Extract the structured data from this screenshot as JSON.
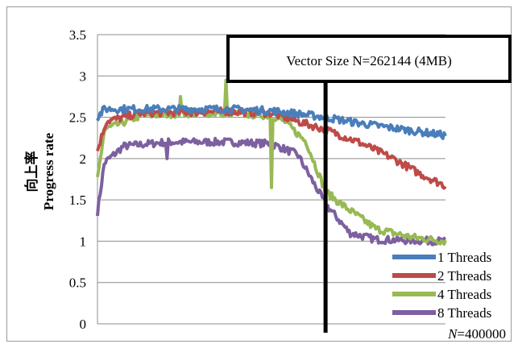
{
  "chart_data": {
    "type": "line",
    "ylabel": "向上率",
    "ylabel_sub": "Progress rate",
    "ylim": [
      0,
      3.5
    ],
    "yticks": [
      "0",
      "0.5",
      "1",
      "1.5",
      "2",
      "2.5",
      "3",
      "3.5"
    ],
    "xlim": [
      0,
      400000
    ],
    "x_note_prefix": "N",
    "x_note_value": "=400000",
    "annotation": {
      "text": "Vector Size N=262144 (4MB)",
      "x": 262144
    },
    "grid": true,
    "legend_position": "bottom-right",
    "series": [
      {
        "name": "1 Threads",
        "color": "#4a7ebb",
        "points": [
          [
            0,
            2.5
          ],
          [
            8000,
            2.6
          ],
          [
            50000,
            2.6
          ],
          [
            100000,
            2.6
          ],
          [
            150000,
            2.6
          ],
          [
            200000,
            2.58
          ],
          [
            240000,
            2.53
          ],
          [
            262144,
            2.5
          ],
          [
            300000,
            2.43
          ],
          [
            340000,
            2.37
          ],
          [
            400000,
            2.28
          ]
        ]
      },
      {
        "name": "2 Threads",
        "color": "#be4b48",
        "points": [
          [
            0,
            2.1
          ],
          [
            10000,
            2.45
          ],
          [
            50000,
            2.55
          ],
          [
            100000,
            2.56
          ],
          [
            150000,
            2.57
          ],
          [
            200000,
            2.55
          ],
          [
            230000,
            2.45
          ],
          [
            262144,
            2.35
          ],
          [
            300000,
            2.2
          ],
          [
            340000,
            2.0
          ],
          [
            370000,
            1.82
          ],
          [
            400000,
            1.67
          ]
        ]
      },
      {
        "name": "4 Threads",
        "color": "#98b954",
        "points": [
          [
            0,
            1.75
          ],
          [
            8000,
            2.35
          ],
          [
            50000,
            2.52
          ],
          [
            100000,
            2.55
          ],
          [
            150000,
            2.55
          ],
          [
            200000,
            2.52
          ],
          [
            215000,
            2.45
          ],
          [
            240000,
            2.2
          ],
          [
            262144,
            1.6
          ],
          [
            280000,
            1.45
          ],
          [
            320000,
            1.15
          ],
          [
            360000,
            1.05
          ],
          [
            400000,
            1.0
          ]
        ]
      },
      {
        "name": "8 Threads",
        "color": "#7d60a0",
        "points": [
          [
            0,
            1.35
          ],
          [
            8000,
            1.95
          ],
          [
            30000,
            2.15
          ],
          [
            80000,
            2.2
          ],
          [
            150000,
            2.2
          ],
          [
            200000,
            2.18
          ],
          [
            230000,
            2.05
          ],
          [
            262144,
            1.45
          ],
          [
            290000,
            1.1
          ],
          [
            320000,
            1.02
          ],
          [
            400000,
            1.0
          ]
        ]
      }
    ],
    "spikes": [
      {
        "series": 2,
        "x": 200000,
        "y": 1.65
      },
      {
        "series": 2,
        "x": 95000,
        "y": 2.75
      },
      {
        "series": 2,
        "x": 148000,
        "y": 2.95
      },
      {
        "series": 3,
        "x": 80000,
        "y": 2.0
      }
    ]
  }
}
